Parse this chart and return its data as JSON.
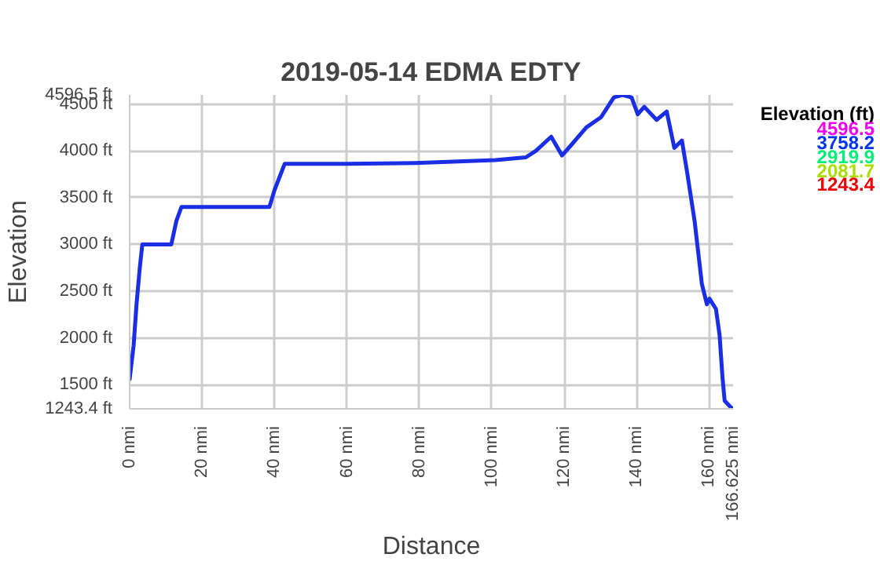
{
  "chart_data": {
    "type": "line",
    "title": "2019-05-14 EDMA EDTY",
    "xlabel": "Distance",
    "ylabel": "Elevation",
    "x": [
      0,
      1.1,
      1.9,
      2.8,
      3.5,
      11.5,
      12.9,
      14.3,
      38.6,
      40,
      42.8,
      60,
      78.9,
      101,
      109.4,
      112.2,
      116.4,
      119.4,
      121.9,
      126.1,
      130.2,
      133.7,
      136,
      138.6,
      140.3,
      142.1,
      145.5,
      148.3,
      150.4,
      152.5,
      153.9,
      156,
      158,
      159.4,
      160.1,
      161.9,
      162.9,
      163.7,
      164.3,
      166,
      166.625
    ],
    "series": [
      {
        "color": "#1a2ee6",
        "values": [
          1560,
          1920,
          2360,
          2750,
          3000,
          3000,
          3250,
          3400,
          3400,
          3580,
          3860,
          3860,
          3870,
          3900,
          3930,
          4000,
          4150,
          3950,
          4060,
          4250,
          4360,
          4570,
          4596.5,
          4570,
          4390,
          4470,
          4330,
          4420,
          4030,
          4110,
          3780,
          3250,
          2580,
          2360,
          2420,
          2310,
          2030,
          1580,
          1330,
          1260,
          1243.4
        ]
      }
    ],
    "annotations": [
      "Elevation (ft)",
      "4596.5",
      "3758.2",
      "2919.9",
      "2081.7",
      "1243.4"
    ],
    "colors": [
      "#000000",
      "#ee00ee",
      "#0033ee",
      "#00ee77",
      "#aadd00",
      "#ee0000"
    ],
    "xlim": [
      0,
      166.625
    ],
    "xticks": [
      {
        "value": 0,
        "label": "0 nmi"
      },
      {
        "value": 20,
        "label": "20 nmi"
      },
      {
        "value": 40,
        "label": "40 nmi"
      },
      {
        "value": 60,
        "label": "60 nmi"
      },
      {
        "value": 80,
        "label": "80 nmi"
      },
      {
        "value": 100,
        "label": "100 nmi"
      },
      {
        "value": 120,
        "label": "120 nmi"
      },
      {
        "value": 140,
        "label": "140 nmi"
      },
      {
        "value": 160,
        "label": "160 nmi"
      },
      {
        "value": 166.625,
        "label": "166.625 nmi"
      }
    ],
    "ylim": [
      1243.4,
      4596.5
    ],
    "yticks": [
      {
        "value": 1243.4,
        "label": "1243.4 ft"
      },
      {
        "value": 1500,
        "label": "1500 ft"
      },
      {
        "value": 2000,
        "label": "2000 ft"
      },
      {
        "value": 2500,
        "label": "2500 ft"
      },
      {
        "value": 3000,
        "label": "3000 ft"
      },
      {
        "value": 3500,
        "label": "3500 ft"
      },
      {
        "value": 4000,
        "label": "4000 ft"
      },
      {
        "value": 4500,
        "label": "4500 ft"
      },
      {
        "value": 4596.5,
        "label": "4596.5 ft"
      }
    ],
    "grid": true
  }
}
